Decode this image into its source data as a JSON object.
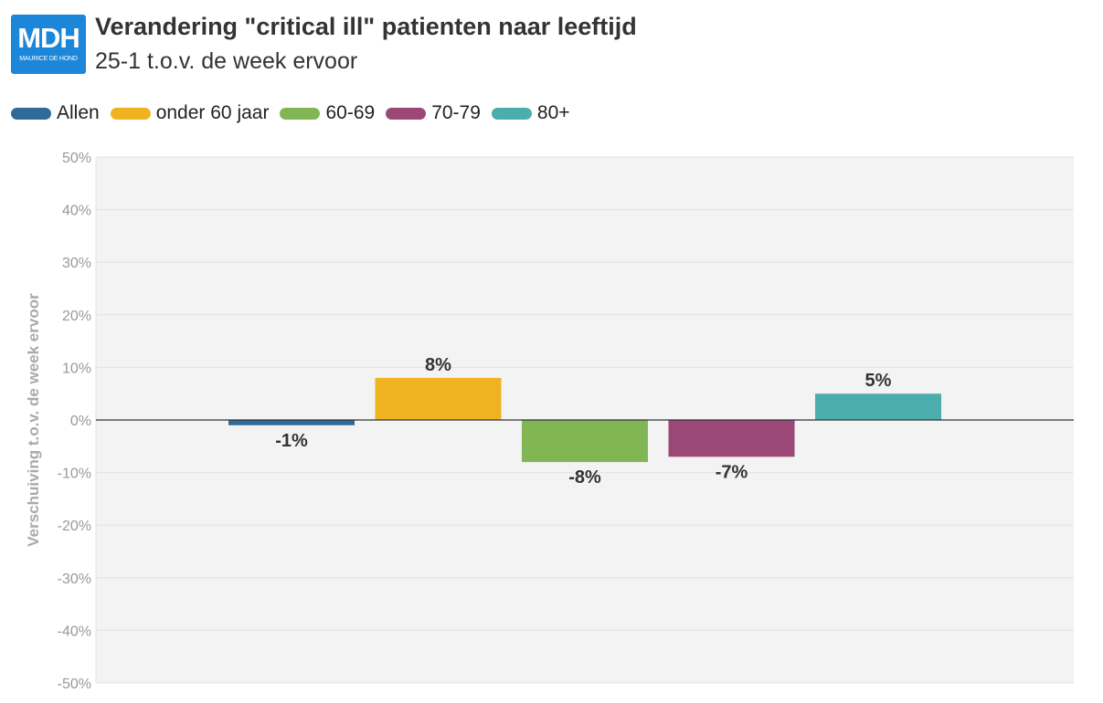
{
  "logo": {
    "main": "MDH",
    "sub": "MAURICE DE HOND"
  },
  "header": {
    "title": "Verandering \"critical ill\" patienten naar leeftijd",
    "subtitle": "25-1 t.o.v. de week ervoor"
  },
  "chart_data": {
    "type": "bar",
    "title": "Verandering \"critical ill\" patienten naar leeftijd",
    "subtitle": "25-1 t.o.v. de week ervoor",
    "xlabel": "",
    "ylabel": "Verschuiving t.o.v. de week ervoor",
    "ylim": [
      -50,
      50
    ],
    "yticks": [
      50,
      40,
      30,
      20,
      10,
      0,
      -10,
      -20,
      -30,
      -40,
      -50
    ],
    "ytick_labels": [
      "50%",
      "40%",
      "30%",
      "20%",
      "10%",
      "0%",
      "-10%",
      "-20%",
      "-30%",
      "-40%",
      "-50%"
    ],
    "grid": true,
    "legend_position": "top-left",
    "series": [
      {
        "name": "Allen",
        "value": -1,
        "label": "-1%",
        "color": "#2e6b9a"
      },
      {
        "name": "onder 60 jaar",
        "value": 8,
        "label": "8%",
        "color": "#efb321"
      },
      {
        "name": "60-69",
        "value": -8,
        "label": "-8%",
        "color": "#82b655"
      },
      {
        "name": "70-79",
        "value": -7,
        "label": "-7%",
        "color": "#9b4876"
      },
      {
        "name": "80+",
        "value": 5,
        "label": "5%",
        "color": "#4cadad"
      }
    ]
  }
}
